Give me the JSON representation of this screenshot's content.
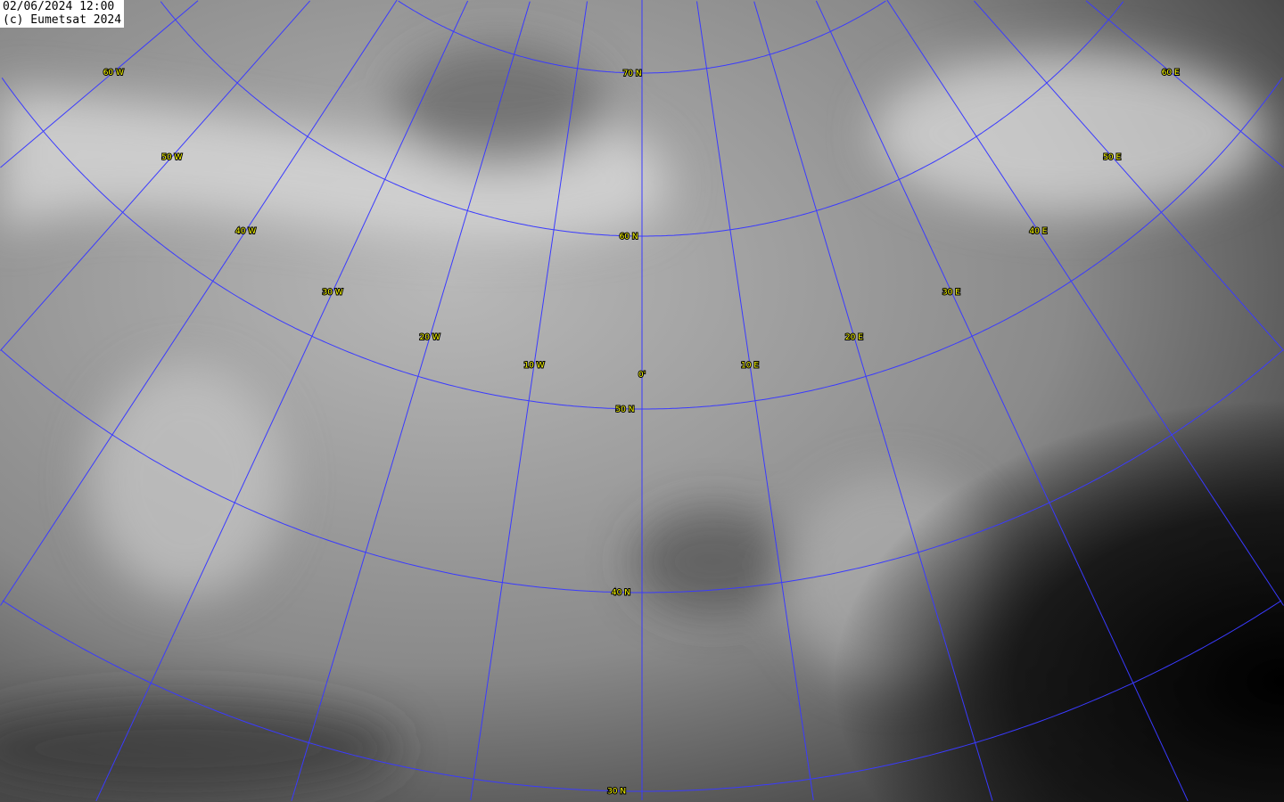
{
  "stamp": {
    "datetime": "02/06/2024 12:00",
    "copyright": "(c) Eumetsat 2024"
  },
  "image": {
    "type": "water vapour satellite image, grayscale",
    "grid_color": "#3a3aff",
    "label_color": "#ffff00"
  },
  "meridians": [
    {
      "lon": -60,
      "label": "60 W"
    },
    {
      "lon": -50,
      "label": "50 W"
    },
    {
      "lon": -40,
      "label": "40 W"
    },
    {
      "lon": -30,
      "label": "30 W"
    },
    {
      "lon": -20,
      "label": "20 W"
    },
    {
      "lon": -10,
      "label": "10 W"
    },
    {
      "lon": 0,
      "label": "0'"
    },
    {
      "lon": 10,
      "label": "10 E"
    },
    {
      "lon": 20,
      "label": "20 E"
    },
    {
      "lon": 30,
      "label": "30 E"
    },
    {
      "lon": 40,
      "label": "40 E"
    },
    {
      "lon": 50,
      "label": "50 E"
    },
    {
      "lon": 60,
      "label": "60 E"
    }
  ],
  "parallels": [
    {
      "lat": 70,
      "label": "70 N"
    },
    {
      "lat": 60,
      "label": "60 N"
    },
    {
      "lat": 50,
      "label": "50 N"
    },
    {
      "lat": 40,
      "label": "40 N"
    },
    {
      "lat": 30,
      "label": "30 N"
    }
  ]
}
